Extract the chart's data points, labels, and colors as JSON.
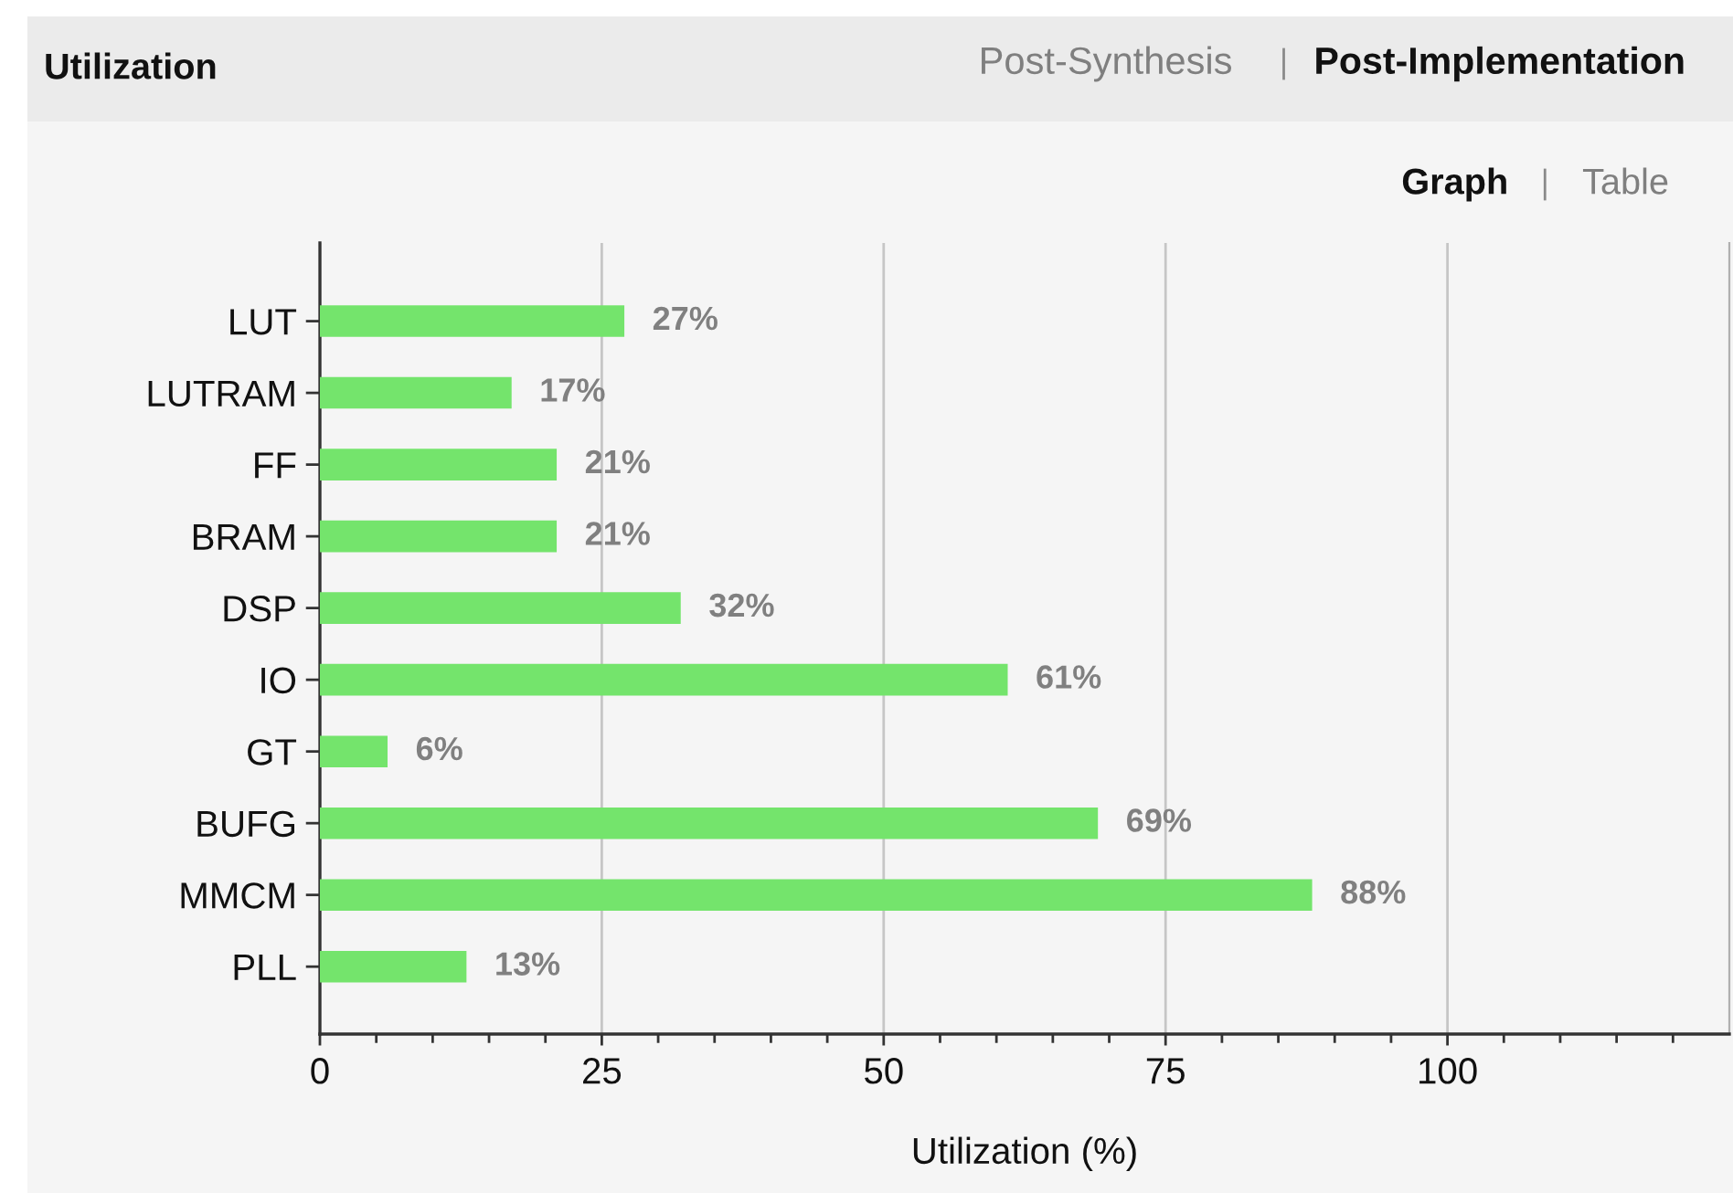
{
  "chart_data": {
    "type": "bar",
    "orientation": "horizontal",
    "title": "Utilization",
    "xlabel": "Utilization (%)",
    "categories": [
      "LUT",
      "LUTRAM",
      "FF",
      "BRAM",
      "DSP",
      "IO",
      "GT",
      "BUFG",
      "MMCM",
      "PLL"
    ],
    "values": [
      27,
      17,
      21,
      21,
      32,
      61,
      6,
      69,
      88,
      13
    ],
    "value_labels": [
      "27%",
      "17%",
      "21%",
      "21%",
      "32%",
      "61%",
      "6%",
      "69%",
      "88%",
      "13%"
    ],
    "color": "#74e46c",
    "xlim": [
      0,
      125
    ],
    "xticks": [
      0,
      {
        "value": 5,
        "label": null
      },
      {
        "value": 10,
        "label": null
      },
      {
        "value": 15,
        "label": null
      },
      {
        "value": 20,
        "label": null
      },
      25,
      {
        "value": 30,
        "label": null
      },
      {
        "value": 35,
        "label": null
      },
      {
        "value": 40,
        "label": null
      },
      {
        "value": 45,
        "label": null
      },
      50,
      {
        "value": 55,
        "label": null
      },
      {
        "value": 60,
        "label": null
      },
      {
        "value": 65,
        "label": null
      },
      {
        "value": 70,
        "label": null
      },
      75,
      {
        "value": 80,
        "label": null
      },
      {
        "value": 85,
        "label": null
      },
      {
        "value": 90,
        "label": null
      },
      {
        "value": 95,
        "label": null
      },
      100,
      {
        "value": 105,
        "label": null
      },
      {
        "value": 110,
        "label": null
      },
      {
        "value": 115,
        "label": null
      },
      {
        "value": 120,
        "label": null
      }
    ],
    "grid": "x",
    "annotations": [
      "Post-Synthesis",
      "Post-Implementation",
      "Graph",
      "Table"
    ]
  }
}
